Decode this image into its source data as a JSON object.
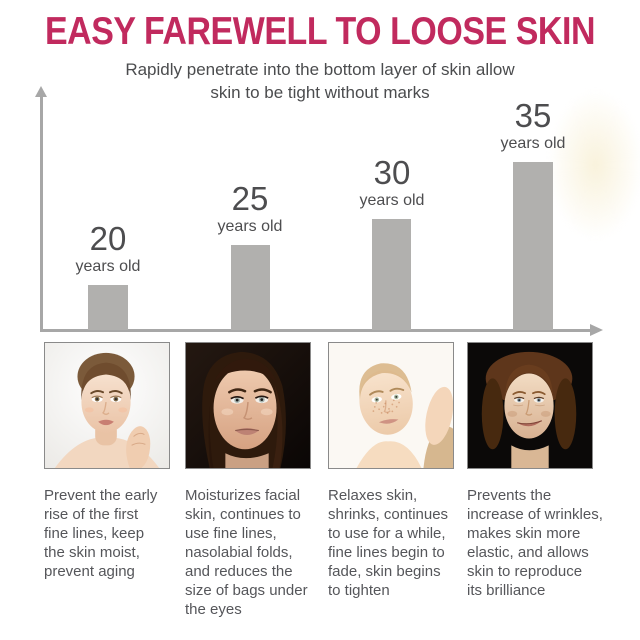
{
  "header": {
    "title": "EASY FAREWELL TO LOOSE SKIN",
    "subtitle_lines": [
      "Rapidly penetrate into the bottom layer of skin allow",
      "skin to be tight without marks"
    ]
  },
  "chart_data": {
    "type": "bar",
    "title": "",
    "xlabel": "",
    "ylabel": "",
    "categories": [
      "20 years old",
      "25 years old",
      "30 years old",
      "35 years old"
    ],
    "ages": [
      "20",
      "25",
      "30",
      "35"
    ],
    "age_suffix": "years old",
    "values": [
      45,
      85,
      111,
      168
    ],
    "bar_color": "#b1b0ae",
    "axis_color": "#a7a7a7",
    "grid": false,
    "legend": false
  },
  "captions": [
    {
      "lines": [
        "Prevent the early",
        "rise of the first",
        "fine lines, keep",
        "the skin moist,",
        "prevent aging"
      ]
    },
    {
      "lines": [
        "Moisturizes facial",
        "skin, continues to",
        "use fine lines,",
        "nasolabial folds,",
        "and reduces the",
        "size of bags under",
        "the eyes"
      ]
    },
    {
      "lines": [
        "Relaxes skin,",
        "shrinks, continues",
        "to use for a while,",
        "fine lines begin to",
        "fade, skin begins",
        "to tighten"
      ]
    },
    {
      "lines": [
        "Prevents the",
        "increase of wrinkles,",
        "makes skin more",
        "elastic, and allows",
        "skin to reproduce",
        "its brilliance"
      ]
    }
  ],
  "colors": {
    "accent": "#c12a5e",
    "bar": "#b1b0ae",
    "axis": "#a7a7a7",
    "body_text": "#55565a",
    "label_text": "#4d4d4f"
  }
}
